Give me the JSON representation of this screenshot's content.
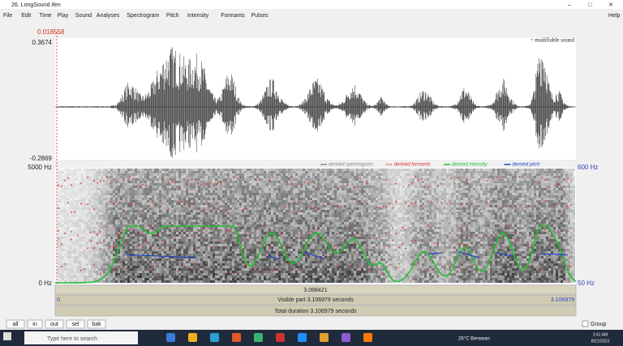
{
  "window_title": "26. LongSound ifen",
  "menu": [
    "File",
    "Edit",
    "Time",
    "Play",
    "Sound",
    "Analyses",
    "Spectrogram",
    "Pitch",
    "Intensity",
    "Formants",
    "Pulses"
  ],
  "help": "Help",
  "cursor_time": "0.018558",
  "wave": {
    "max": "0.3674",
    "min": "-0.2869",
    "label": "~ modifiable sound"
  },
  "spectrogram": {
    "fmax": "5000 Hz",
    "fmin": "0 Hz",
    "pitch_max": "600 Hz",
    "pitch_min": "50 Hz",
    "legend": [
      "derived spectrogram",
      "derived formants",
      "derived intensity",
      "derived pitch"
    ]
  },
  "selection": "3.088421",
  "visible": {
    "start": "0",
    "label": "Visible part 3.106979 seconds",
    "end": "3.106979"
  },
  "total": "Total duration 3.106979 seconds",
  "buttons": [
    "all",
    "in",
    "out",
    "sel",
    "bak"
  ],
  "group": "Group",
  "taskbar": {
    "search": "Type here to search",
    "weather": "26°C Berawan",
    "time": "3:41 AM",
    "date": "8/21/2023"
  }
}
